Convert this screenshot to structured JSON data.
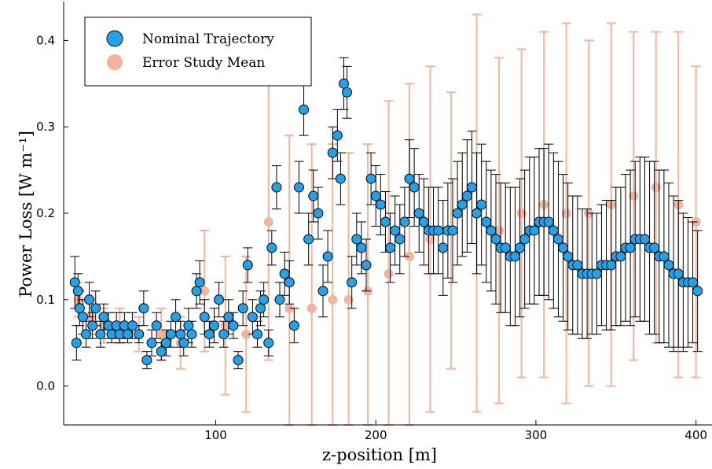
{
  "chart_data": {
    "type": "scatter",
    "xlabel": "z-position [m]",
    "ylabel": "Power Loss [W m⁻¹]",
    "xlim": [
      5,
      410
    ],
    "ylim": [
      -0.045,
      0.445
    ],
    "xticks": [
      100,
      200,
      300,
      400
    ],
    "yticks": [
      0.0,
      0.1,
      0.2,
      0.3,
      0.4
    ],
    "xtick_labels": [
      "100",
      "200",
      "300",
      "400"
    ],
    "ytick_labels": [
      "0.0",
      "0.1",
      "0.2",
      "0.3",
      "0.4"
    ],
    "grid": false,
    "legend_position": "top-left",
    "colors": {
      "nominal_marker": "#1fa3ec",
      "nominal_errorbar": "#000000",
      "error_study": "#f2b59c"
    },
    "series": [
      {
        "name": "Nominal Trajectory",
        "marker": "circle",
        "x": [
          12,
          13,
          14,
          15,
          17,
          19,
          21,
          23,
          25,
          28,
          30,
          33,
          35,
          38,
          40,
          43,
          45,
          48,
          52,
          55,
          57,
          60,
          63,
          66,
          69,
          72,
          75,
          78,
          80,
          83,
          85,
          88,
          90,
          93,
          96,
          99,
          102,
          105,
          108,
          111,
          114,
          117,
          120,
          123,
          126,
          128,
          130,
          133,
          135,
          138,
          140,
          143,
          146,
          149,
          152,
          155,
          158,
          161,
          164,
          167,
          170,
          173,
          176,
          178,
          180,
          182,
          185,
          188,
          191,
          194,
          197,
          200,
          203,
          206,
          209,
          212,
          215,
          218,
          221,
          224,
          227,
          230,
          233,
          236,
          239,
          242,
          245,
          248,
          251,
          254,
          257,
          260,
          263,
          266,
          269,
          272,
          275,
          278,
          281,
          284,
          287,
          290,
          293,
          296,
          299,
          302,
          305,
          308,
          311,
          314,
          317,
          320,
          323,
          326,
          329,
          332,
          335,
          338,
          341,
          344,
          347,
          350,
          353,
          356,
          359,
          362,
          365,
          368,
          371,
          374,
          377,
          380,
          383,
          386,
          389,
          392,
          395,
          398,
          401
        ],
        "y": [
          0.12,
          0.05,
          0.11,
          0.09,
          0.08,
          0.06,
          0.1,
          0.07,
          0.09,
          0.06,
          0.08,
          0.07,
          0.06,
          0.07,
          0.06,
          0.07,
          0.06,
          0.07,
          0.06,
          0.09,
          0.03,
          0.05,
          0.07,
          0.04,
          0.05,
          0.06,
          0.08,
          0.06,
          0.05,
          0.07,
          0.06,
          0.11,
          0.12,
          0.08,
          0.06,
          0.07,
          0.1,
          0.06,
          0.08,
          0.07,
          0.03,
          0.09,
          0.14,
          0.08,
          0.06,
          0.09,
          0.1,
          0.05,
          0.16,
          0.23,
          0.1,
          0.13,
          0.12,
          0.07,
          0.23,
          0.32,
          0.17,
          0.22,
          0.2,
          0.11,
          0.15,
          0.27,
          0.29,
          0.24,
          0.35,
          0.34,
          0.12,
          0.17,
          0.16,
          0.14,
          0.24,
          0.22,
          0.21,
          0.19,
          0.16,
          0.18,
          0.17,
          0.19,
          0.24,
          0.23,
          0.2,
          0.19,
          0.18,
          0.18,
          0.18,
          0.16,
          0.18,
          0.18,
          0.2,
          0.21,
          0.22,
          0.23,
          0.2,
          0.21,
          0.19,
          0.18,
          0.17,
          0.16,
          0.16,
          0.15,
          0.15,
          0.16,
          0.17,
          0.18,
          0.18,
          0.19,
          0.19,
          0.19,
          0.18,
          0.17,
          0.16,
          0.15,
          0.14,
          0.14,
          0.13,
          0.13,
          0.13,
          0.13,
          0.14,
          0.14,
          0.14,
          0.15,
          0.15,
          0.16,
          0.16,
          0.17,
          0.17,
          0.17,
          0.16,
          0.16,
          0.15,
          0.15,
          0.14,
          0.13,
          0.13,
          0.12,
          0.12,
          0.12,
          0.11
        ],
        "err": [
          0.03,
          0.02,
          0.02,
          0.02,
          0.02,
          0.015,
          0.02,
          0.015,
          0.02,
          0.015,
          0.015,
          0.015,
          0.01,
          0.015,
          0.01,
          0.015,
          0.01,
          0.015,
          0.01,
          0.02,
          0.01,
          0.015,
          0.015,
          0.01,
          0.015,
          0.015,
          0.02,
          0.015,
          0.015,
          0.02,
          0.015,
          0.02,
          0.025,
          0.02,
          0.015,
          0.02,
          0.02,
          0.015,
          0.02,
          0.015,
          0.01,
          0.02,
          0.02,
          0.02,
          0.015,
          0.02,
          0.02,
          0.015,
          0.02,
          0.025,
          0.02,
          0.025,
          0.025,
          0.02,
          0.03,
          0.03,
          0.03,
          0.03,
          0.03,
          0.03,
          0.03,
          0.03,
          0.03,
          0.03,
          0.03,
          0.03,
          0.03,
          0.03,
          0.03,
          0.03,
          0.03,
          0.035,
          0.035,
          0.035,
          0.04,
          0.04,
          0.04,
          0.04,
          0.045,
          0.045,
          0.045,
          0.05,
          0.05,
          0.05,
          0.05,
          0.055,
          0.055,
          0.06,
          0.06,
          0.06,
          0.065,
          0.065,
          0.07,
          0.07,
          0.07,
          0.07,
          0.075,
          0.075,
          0.075,
          0.08,
          0.08,
          0.08,
          0.08,
          0.085,
          0.085,
          0.085,
          0.085,
          0.09,
          0.09,
          0.09,
          0.085,
          0.085,
          0.08,
          0.08,
          0.075,
          0.075,
          0.07,
          0.07,
          0.07,
          0.075,
          0.075,
          0.08,
          0.08,
          0.085,
          0.09,
          0.09,
          0.095,
          0.095,
          0.1,
          0.1,
          0.1,
          0.1,
          0.095,
          0.09,
          0.085,
          0.08,
          0.075,
          0.07,
          0.07
        ]
      },
      {
        "name": "Error Study Mean",
        "marker": "circle",
        "x": [
          14,
          22,
          30,
          40,
          52,
          66,
          78,
          93,
          106,
          119,
          133,
          146,
          160,
          173,
          183,
          195,
          208,
          221,
          234,
          247,
          263,
          277,
          291,
          305,
          319,
          333,
          347,
          361,
          375,
          389,
          400
        ],
        "y": [
          0.1,
          0.08,
          0.07,
          0.07,
          0.06,
          0.06,
          0.05,
          0.11,
          0.07,
          0.06,
          0.19,
          0.09,
          0.09,
          0.1,
          0.1,
          0.11,
          0.13,
          0.15,
          0.17,
          0.18,
          0.2,
          0.18,
          0.2,
          0.21,
          0.2,
          0.2,
          0.21,
          0.22,
          0.23,
          0.21,
          0.19
        ],
        "err": [
          0.02,
          0.02,
          0.02,
          0.02,
          0.02,
          0.03,
          0.03,
          0.07,
          0.08,
          0.09,
          0.16,
          0.2,
          0.19,
          0.18,
          0.17,
          0.17,
          0.2,
          0.2,
          0.2,
          0.16,
          0.23,
          0.2,
          0.19,
          0.2,
          0.22,
          0.2,
          0.21,
          0.19,
          0.18,
          0.2,
          0.18
        ]
      }
    ]
  }
}
